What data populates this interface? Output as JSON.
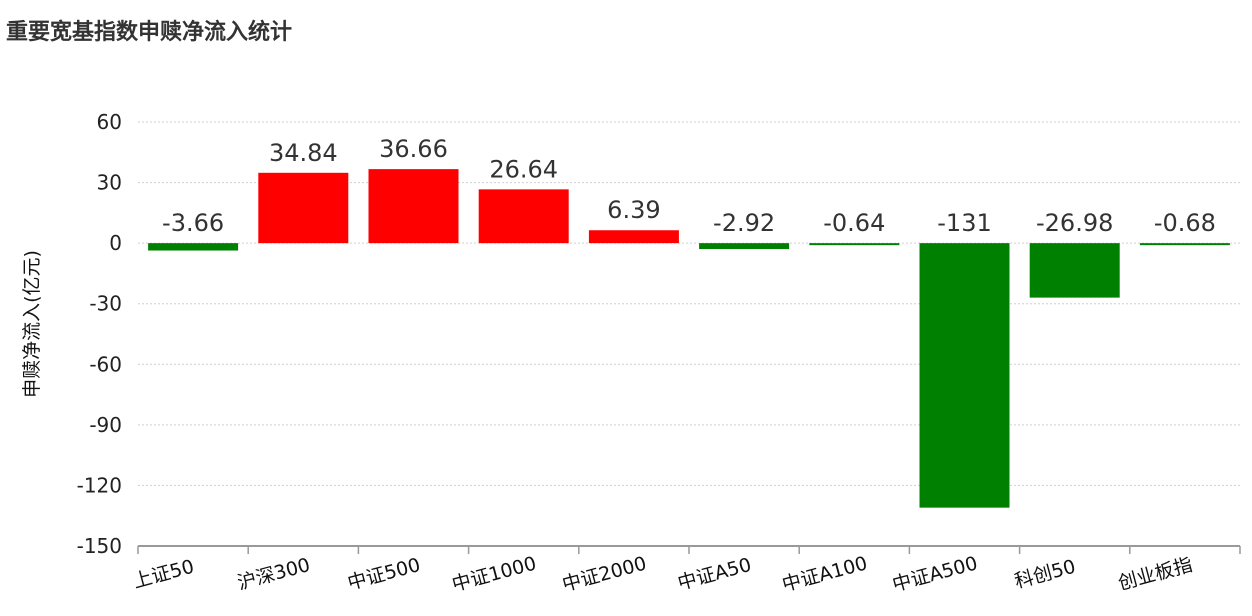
{
  "chart_data": {
    "type": "bar",
    "title": "重要宽基指数申赎净流入统计",
    "ylabel": "申赎净流入(亿元)",
    "xlabel": "",
    "categories": [
      "上证50",
      "沪深300",
      "中证500",
      "中证1000",
      "中证2000",
      "中证A50",
      "中证A100",
      "中证A500",
      "科创50",
      "创业板指"
    ],
    "values": [
      -3.66,
      34.84,
      36.66,
      26.64,
      6.39,
      -2.92,
      -0.64,
      -131,
      -26.98,
      -0.68
    ],
    "ylim": [
      -150,
      60
    ],
    "yticks": [
      60,
      30,
      0,
      -30,
      -60,
      -90,
      -120,
      -150
    ],
    "grid": true,
    "colors": {
      "positive": "#ff0000",
      "negative": "#008000"
    }
  }
}
